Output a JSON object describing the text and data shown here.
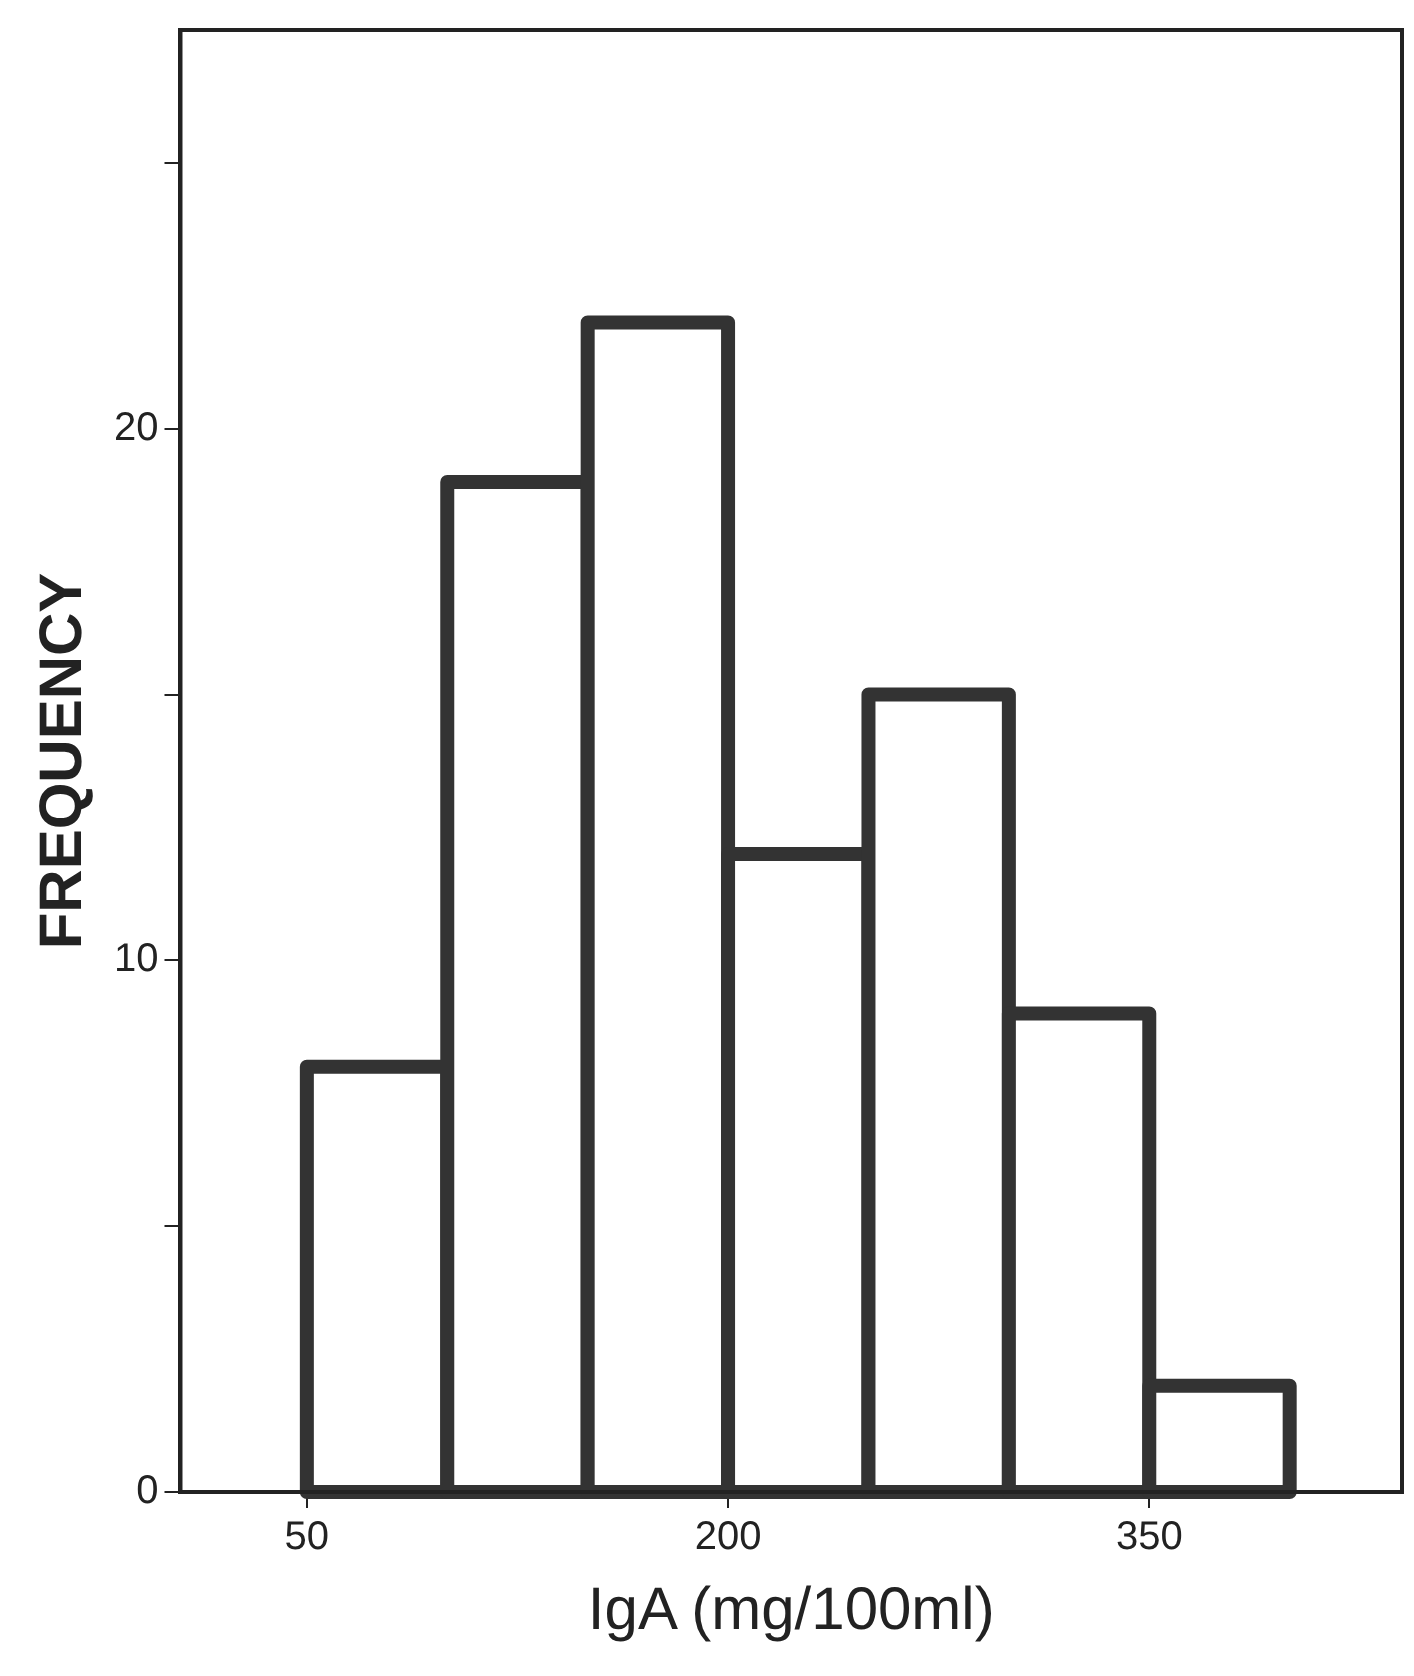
{
  "chart_data": {
    "type": "histogram",
    "xlabel": "IgA (mg/100ml)",
    "ylabel": "FREQUENCY",
    "bins": [
      50,
      100,
      150,
      200,
      250,
      300,
      350,
      400
    ],
    "values": [
      8,
      19,
      22,
      12,
      15,
      9,
      2
    ],
    "color": "#ffffff",
    "xlim": [
      5,
      440
    ],
    "xticks": [
      50,
      200,
      350
    ],
    "ylim": [
      0,
      27.5
    ],
    "yticks": [
      0,
      {
        "value": 5,
        "label": null
      },
      10,
      {
        "value": 15,
        "label": null
      },
      20,
      {
        "value": 25,
        "label": null
      }
    ],
    "grid": false,
    "legend": false
  }
}
